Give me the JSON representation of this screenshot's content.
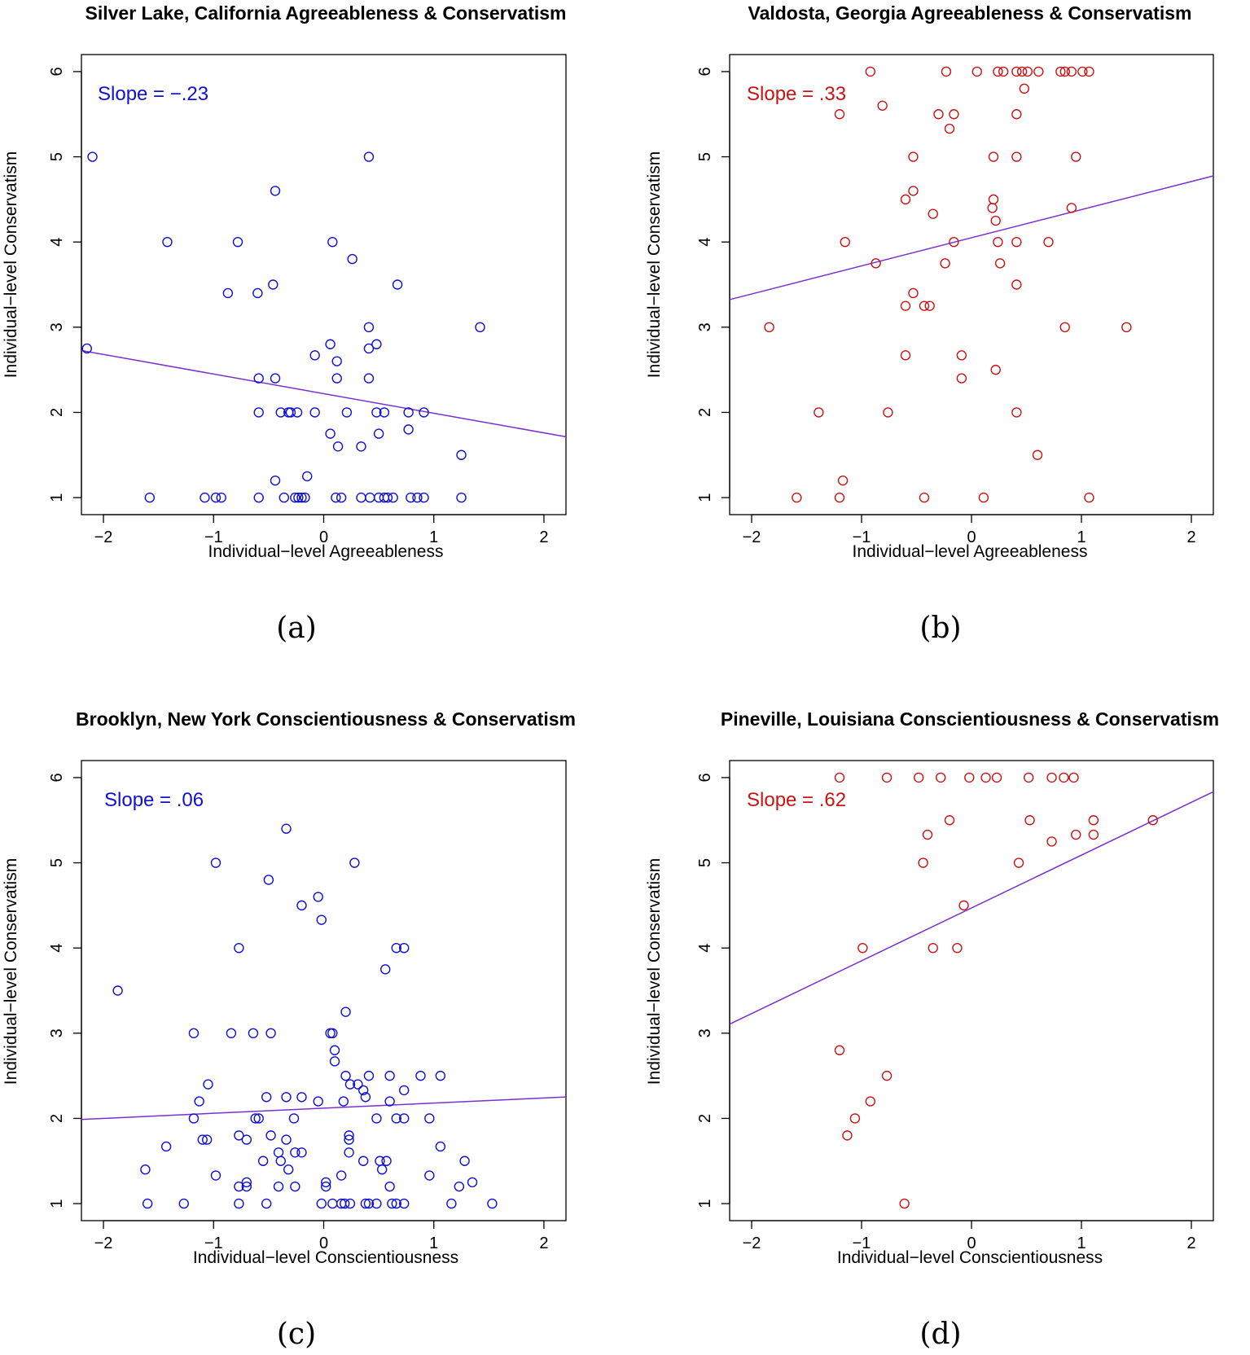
{
  "chart_data": [
    {
      "id": "a",
      "type": "scatter",
      "title": "Silver Lake, California Agreeableness & Conservatism",
      "xlabel": "Individual−level Agreeableness",
      "ylabel": "Individual−level Conservatism",
      "caption": "(a)",
      "slope_label": "Slope = −.23",
      "color": "#1010d0",
      "line_color": "#7a2fd0",
      "xlim": [
        -2.2,
        2.2
      ],
      "ylim": [
        0.8,
        6.2
      ],
      "xticks": [
        -2,
        -1,
        0,
        1,
        2
      ],
      "xtick_labels": [
        "−2",
        "−1",
        "0",
        "1",
        "2"
      ],
      "yticks": [
        1,
        2,
        3,
        4,
        5,
        6
      ],
      "ytick_labels": [
        "1",
        "2",
        "3",
        "4",
        "5",
        "6"
      ],
      "fit": {
        "slope": -0.23,
        "intercept": 2.22
      },
      "points": [
        [
          -2.1,
          5
        ],
        [
          -2.15,
          2.75
        ],
        [
          -1.58,
          1
        ],
        [
          -1.42,
          4
        ],
        [
          -1.08,
          1
        ],
        [
          -0.98,
          1
        ],
        [
          -0.93,
          1
        ],
        [
          -0.87,
          3.4
        ],
        [
          -0.78,
          4
        ],
        [
          -0.6,
          3.4
        ],
        [
          -0.59,
          2.4
        ],
        [
          -0.59,
          2
        ],
        [
          -0.59,
          1
        ],
        [
          -0.46,
          3.5
        ],
        [
          -0.44,
          4.6
        ],
        [
          -0.44,
          2.4
        ],
        [
          -0.44,
          1.2
        ],
        [
          -0.39,
          2
        ],
        [
          -0.36,
          1
        ],
        [
          -0.32,
          2
        ],
        [
          -0.3,
          2
        ],
        [
          -0.24,
          2
        ],
        [
          -0.26,
          1
        ],
        [
          -0.23,
          1
        ],
        [
          -0.2,
          1
        ],
        [
          -0.17,
          1
        ],
        [
          -0.15,
          1.25
        ],
        [
          -0.08,
          2.67
        ],
        [
          -0.08,
          2
        ],
        [
          0.06,
          2.8
        ],
        [
          0.06,
          1.75
        ],
        [
          0.08,
          4
        ],
        [
          0.12,
          2.6
        ],
        [
          0.12,
          2.4
        ],
        [
          0.11,
          1
        ],
        [
          0.13,
          1.6
        ],
        [
          0.16,
          1
        ],
        [
          0.21,
          2
        ],
        [
          0.26,
          3.8
        ],
        [
          0.34,
          1.6
        ],
        [
          0.34,
          1
        ],
        [
          0.41,
          5
        ],
        [
          0.41,
          3
        ],
        [
          0.41,
          2.75
        ],
        [
          0.41,
          2.4
        ],
        [
          0.42,
          1
        ],
        [
          0.48,
          2.8
        ],
        [
          0.48,
          2
        ],
        [
          0.5,
          1.75
        ],
        [
          0.5,
          1
        ],
        [
          0.55,
          2
        ],
        [
          0.55,
          1
        ],
        [
          0.58,
          1
        ],
        [
          0.63,
          1
        ],
        [
          0.67,
          3.5
        ],
        [
          0.77,
          2
        ],
        [
          0.77,
          1.8
        ],
        [
          0.79,
          1
        ],
        [
          0.85,
          1
        ],
        [
          0.91,
          2
        ],
        [
          0.91,
          1
        ],
        [
          1.25,
          1.5
        ],
        [
          1.25,
          1
        ],
        [
          1.42,
          3
        ]
      ]
    },
    {
      "id": "b",
      "type": "scatter",
      "title": "Valdosta, Georgia Agreeableness & Conservatism",
      "xlabel": "Individual−level Agreeableness",
      "ylabel": "Individual−level Conservatism",
      "caption": "(b)",
      "slope_label": "Slope = .33",
      "color": "#c81414",
      "line_color": "#7a2fd0",
      "xlim": [
        -2.2,
        2.2
      ],
      "ylim": [
        0.8,
        6.2
      ],
      "xticks": [
        -2,
        -1,
        0,
        1,
        2
      ],
      "xtick_labels": [
        "−2",
        "−1",
        "0",
        "1",
        "2"
      ],
      "yticks": [
        1,
        2,
        3,
        4,
        5,
        6
      ],
      "ytick_labels": [
        "1",
        "2",
        "3",
        "4",
        "5",
        "6"
      ],
      "fit": {
        "slope": 0.33,
        "intercept": 4.05
      },
      "points": [
        [
          -1.84,
          3
        ],
        [
          -1.59,
          1
        ],
        [
          -1.39,
          2
        ],
        [
          -1.2,
          5.5
        ],
        [
          -1.2,
          1
        ],
        [
          -1.17,
          1.2
        ],
        [
          -1.15,
          4
        ],
        [
          -0.92,
          6
        ],
        [
          -0.87,
          3.75
        ],
        [
          -0.81,
          5.6
        ],
        [
          -0.76,
          2
        ],
        [
          -0.6,
          4.5
        ],
        [
          -0.6,
          3.25
        ],
        [
          -0.6,
          2.67
        ],
        [
          -0.53,
          5
        ],
        [
          -0.53,
          4.6
        ],
        [
          -0.53,
          3.4
        ],
        [
          -0.43,
          3.25
        ],
        [
          -0.43,
          1
        ],
        [
          -0.38,
          3.25
        ],
        [
          -0.35,
          4.33
        ],
        [
          -0.3,
          5.5
        ],
        [
          -0.23,
          6
        ],
        [
          -0.24,
          3.75
        ],
        [
          -0.2,
          5.33
        ],
        [
          -0.16,
          5.5
        ],
        [
          -0.16,
          4
        ],
        [
          -0.09,
          2.67
        ],
        [
          -0.09,
          2.4
        ],
        [
          0.05,
          6
        ],
        [
          0.11,
          1
        ],
        [
          0.2,
          5
        ],
        [
          0.19,
          4.4
        ],
        [
          0.2,
          4.5
        ],
        [
          0.22,
          4.25
        ],
        [
          0.22,
          2.5
        ],
        [
          0.24,
          6
        ],
        [
          0.24,
          4
        ],
        [
          0.26,
          3.75
        ],
        [
          0.29,
          6
        ],
        [
          0.41,
          6
        ],
        [
          0.41,
          5.5
        ],
        [
          0.41,
          5
        ],
        [
          0.41,
          4
        ],
        [
          0.41,
          3.5
        ],
        [
          0.41,
          2
        ],
        [
          0.46,
          6
        ],
        [
          0.48,
          5.8
        ],
        [
          0.51,
          6
        ],
        [
          0.6,
          1.5
        ],
        [
          0.61,
          6
        ],
        [
          0.7,
          4
        ],
        [
          0.81,
          6
        ],
        [
          0.85,
          6
        ],
        [
          0.85,
          3
        ],
        [
          0.91,
          6
        ],
        [
          0.91,
          4.4
        ],
        [
          0.95,
          5
        ],
        [
          1.01,
          6
        ],
        [
          1.07,
          6
        ],
        [
          1.07,
          1
        ],
        [
          1.41,
          3
        ]
      ]
    },
    {
      "id": "c",
      "type": "scatter",
      "title": "Brooklyn, New York Conscientiousness & Conservatism",
      "xlabel": "Individual−level Conscientiousness",
      "ylabel": "Individual−level Conservatism",
      "caption": "(c)",
      "slope_label": "Slope = .06",
      "color": "#1010d0",
      "line_color": "#7a2fd0",
      "xlim": [
        -2.2,
        2.2
      ],
      "ylim": [
        0.8,
        6.2
      ],
      "xticks": [
        -2,
        -1,
        0,
        1,
        2
      ],
      "xtick_labels": [
        "−2",
        "−1",
        "0",
        "1",
        "2"
      ],
      "yticks": [
        1,
        2,
        3,
        4,
        5,
        6
      ],
      "ytick_labels": [
        "1",
        "2",
        "3",
        "4",
        "5",
        "6"
      ],
      "fit": {
        "slope": 0.06,
        "intercept": 2.12
      },
      "points": [
        [
          -1.87,
          3.5
        ],
        [
          -1.62,
          1.4
        ],
        [
          -1.6,
          1
        ],
        [
          -1.43,
          1.67
        ],
        [
          -1.27,
          1
        ],
        [
          -1.18,
          3
        ],
        [
          -1.18,
          2
        ],
        [
          -1.13,
          2.2
        ],
        [
          -1.1,
          1.75
        ],
        [
          -1.06,
          1.75
        ],
        [
          -1.05,
          2.4
        ],
        [
          -0.98,
          5
        ],
        [
          -0.98,
          1.33
        ],
        [
          -0.84,
          3
        ],
        [
          -0.77,
          4
        ],
        [
          -0.77,
          1.8
        ],
        [
          -0.77,
          1.2
        ],
        [
          -0.77,
          1
        ],
        [
          -0.7,
          1.75
        ],
        [
          -0.7,
          1.25
        ],
        [
          -0.7,
          1.2
        ],
        [
          -0.64,
          3
        ],
        [
          -0.62,
          2
        ],
        [
          -0.59,
          2
        ],
        [
          -0.55,
          1.5
        ],
        [
          -0.52,
          2.25
        ],
        [
          -0.52,
          1
        ],
        [
          -0.5,
          4.8
        ],
        [
          -0.48,
          3
        ],
        [
          -0.48,
          1.8
        ],
        [
          -0.41,
          1.6
        ],
        [
          -0.41,
          1.2
        ],
        [
          -0.39,
          1.5
        ],
        [
          -0.34,
          5.4
        ],
        [
          -0.34,
          2.25
        ],
        [
          -0.34,
          1.75
        ],
        [
          -0.32,
          1.4
        ],
        [
          -0.27,
          2
        ],
        [
          -0.26,
          1.6
        ],
        [
          -0.26,
          1.2
        ],
        [
          -0.2,
          4.5
        ],
        [
          -0.2,
          2.25
        ],
        [
          -0.2,
          1.6
        ],
        [
          -0.05,
          4.6
        ],
        [
          -0.05,
          2.2
        ],
        [
          -0.02,
          4.33
        ],
        [
          -0.02,
          1
        ],
        [
          0.02,
          1.25
        ],
        [
          0.02,
          1.2
        ],
        [
          0.06,
          3
        ],
        [
          0.08,
          3
        ],
        [
          0.1,
          2.8
        ],
        [
          0.08,
          1
        ],
        [
          0.1,
          2.67
        ],
        [
          0.16,
          1.33
        ],
        [
          0.16,
          1
        ],
        [
          0.18,
          2.2
        ],
        [
          0.19,
          1
        ],
        [
          0.2,
          3.25
        ],
        [
          0.2,
          2.5
        ],
        [
          0.23,
          1.8
        ],
        [
          0.23,
          1.75
        ],
        [
          0.23,
          1.6
        ],
        [
          0.24,
          2.4
        ],
        [
          0.24,
          1
        ],
        [
          0.28,
          5
        ],
        [
          0.31,
          2.4
        ],
        [
          0.36,
          1.5
        ],
        [
          0.36,
          2.33
        ],
        [
          0.38,
          1
        ],
        [
          0.38,
          2.25
        ],
        [
          0.41,
          1
        ],
        [
          0.41,
          2.5
        ],
        [
          0.48,
          2
        ],
        [
          0.48,
          1
        ],
        [
          0.51,
          1.5
        ],
        [
          0.53,
          1.4
        ],
        [
          0.56,
          3.75
        ],
        [
          0.57,
          1.5
        ],
        [
          0.6,
          2.5
        ],
        [
          0.6,
          2.2
        ],
        [
          0.6,
          1.2
        ],
        [
          0.62,
          1
        ],
        [
          0.66,
          4
        ],
        [
          0.66,
          2
        ],
        [
          0.66,
          1
        ],
        [
          0.73,
          4
        ],
        [
          0.73,
          2.33
        ],
        [
          0.73,
          2
        ],
        [
          0.73,
          1
        ],
        [
          0.88,
          2.5
        ],
        [
          0.96,
          2
        ],
        [
          0.96,
          1.33
        ],
        [
          1.06,
          2.5
        ],
        [
          1.06,
          1.67
        ],
        [
          1.16,
          1
        ],
        [
          1.23,
          1.2
        ],
        [
          1.28,
          1.5
        ],
        [
          1.35,
          1.25
        ],
        [
          1.53,
          1
        ]
      ]
    },
    {
      "id": "d",
      "type": "scatter",
      "title": "Pineville, Louisiana Conscientiousness & Conservatism",
      "xlabel": "Individual−level Conscientiousness",
      "ylabel": "Individual−level Conservatism",
      "caption": "(d)",
      "slope_label": "Slope = .62",
      "color": "#c81414",
      "line_color": "#7a2fd0",
      "xlim": [
        -2.2,
        2.2
      ],
      "ylim": [
        0.8,
        6.2
      ],
      "xticks": [
        -2,
        -1,
        0,
        1,
        2
      ],
      "xtick_labels": [
        "−2",
        "−1",
        "0",
        "1",
        "2"
      ],
      "yticks": [
        1,
        2,
        3,
        4,
        5,
        6
      ],
      "ytick_labels": [
        "1",
        "2",
        "3",
        "4",
        "5",
        "6"
      ],
      "fit": {
        "slope": 0.62,
        "intercept": 4.47
      },
      "points": [
        [
          -1.2,
          6
        ],
        [
          -1.2,
          2.8
        ],
        [
          -1.13,
          1.8
        ],
        [
          -1.06,
          2
        ],
        [
          -0.99,
          4
        ],
        [
          -0.92,
          2.2
        ],
        [
          -0.77,
          6
        ],
        [
          -0.77,
          2.5
        ],
        [
          -0.61,
          1
        ],
        [
          -0.48,
          6
        ],
        [
          -0.44,
          5
        ],
        [
          -0.4,
          5.33
        ],
        [
          -0.35,
          4
        ],
        [
          -0.28,
          6
        ],
        [
          -0.2,
          5.5
        ],
        [
          -0.13,
          4
        ],
        [
          -0.07,
          4.5
        ],
        [
          -0.02,
          6
        ],
        [
          0.13,
          6
        ],
        [
          0.23,
          6
        ],
        [
          0.43,
          5
        ],
        [
          0.52,
          6
        ],
        [
          0.53,
          5.5
        ],
        [
          0.73,
          6
        ],
        [
          0.73,
          5.25
        ],
        [
          0.84,
          6
        ],
        [
          0.93,
          6
        ],
        [
          0.95,
          5.33
        ],
        [
          1.11,
          5.5
        ],
        [
          1.11,
          5.33
        ],
        [
          1.65,
          5.5
        ]
      ]
    }
  ]
}
